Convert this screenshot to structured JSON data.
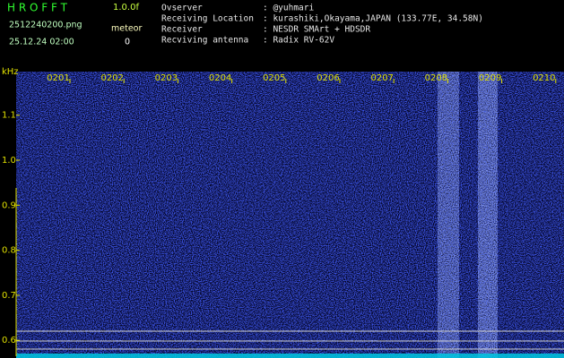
{
  "header": {
    "app": "H R O F F T",
    "version": "1.0.0f",
    "file": "2512240200.png",
    "datetime": "25.12.24 02:00",
    "meteor_label": "meteor",
    "meteor_count": "0"
  },
  "info": [
    [
      "Ovserver",
      ": @yuhmari"
    ],
    [
      "Receiving Location",
      ": kurashiki,Okayama,JAPAN (133.77E, 34.58N)"
    ],
    [
      "Receiver",
      ": NESDR SMArt + HDSDR"
    ],
    [
      "Recviving antenna",
      ": Radix RV-62V"
    ]
  ],
  "axis": {
    "unit": "kHz",
    "time_labels": [
      "0201",
      "0202",
      "0203",
      "0204",
      "0205",
      "0206",
      "0207",
      "0208",
      "0209",
      "0210"
    ],
    "freq_ticks": [
      {
        "value": 1.1,
        "label": "1.1"
      },
      {
        "value": 1.0,
        "label": "1.0"
      },
      {
        "value": 0.9,
        "label": "0.9"
      },
      {
        "value": 0.8,
        "label": "0.8"
      },
      {
        "value": 0.7,
        "label": "0.7"
      },
      {
        "value": 0.6,
        "label": "0.6"
      }
    ]
  }
}
